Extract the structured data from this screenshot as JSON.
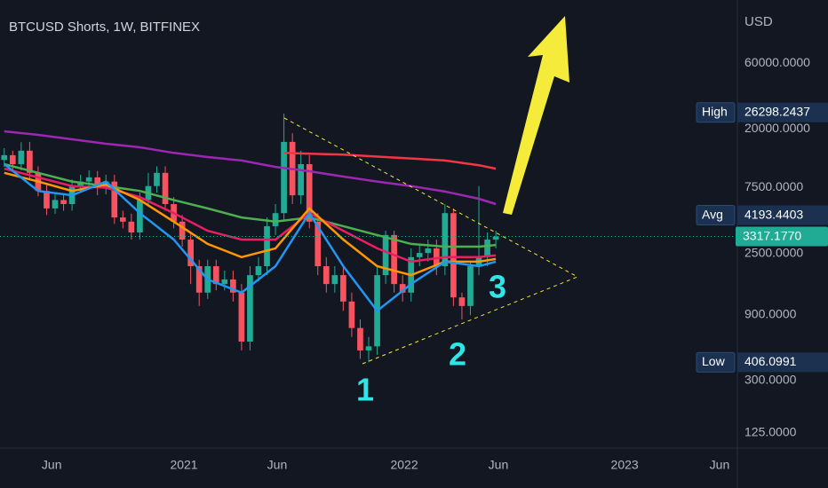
{
  "chart_data": {
    "type": "candlestick",
    "title": "BTCUSD Shorts, 1W, BITFINEX",
    "y_axis_label": "USD",
    "log_scale": true,
    "grid": false,
    "ylim": [
      97,
      172000
    ],
    "yticks": [
      {
        "value": 60000,
        "label": "60000.0000"
      },
      {
        "value": 20000,
        "label": "20000.0000"
      },
      {
        "value": 7500,
        "label": "7500.0000"
      },
      {
        "value": 2500,
        "label": "2500.0000"
      },
      {
        "value": 900,
        "label": "900.0000"
      },
      {
        "value": 300,
        "label": "300.0000"
      },
      {
        "value": 125,
        "label": "125.0000"
      }
    ],
    "xlim": [
      -0.5,
      86.5
    ],
    "xticks": [
      {
        "value": 5.6,
        "label": "Jun"
      },
      {
        "value": 21.2,
        "label": "2021"
      },
      {
        "value": 32.2,
        "label": "Jun"
      },
      {
        "value": 47.2,
        "label": "2022"
      },
      {
        "value": 58.3,
        "label": "Jun"
      },
      {
        "value": 73.2,
        "label": "2023"
      },
      {
        "value": 84.4,
        "label": "Jun"
      }
    ],
    "up_color": "#22ab94",
    "down_color": "#f7525f",
    "x": [
      0,
      1,
      2,
      3,
      4,
      5,
      6,
      7,
      8,
      9,
      10,
      11,
      12,
      13,
      14,
      15,
      16,
      17,
      18,
      19,
      20,
      21,
      22,
      23,
      24,
      25,
      26,
      27,
      28,
      29,
      30,
      31,
      32,
      33,
      34,
      35,
      36,
      37,
      38,
      39,
      40,
      41,
      42,
      43,
      44,
      45,
      46,
      47,
      48,
      49,
      50,
      51,
      52,
      53,
      54,
      55,
      56,
      57,
      58
    ],
    "open": [
      11900,
      12900,
      11100,
      13900,
      9600,
      7100,
      5300,
      6100,
      5700,
      7700,
      8300,
      8900,
      7500,
      8300,
      4560,
      4250,
      3550,
      6100,
      7700,
      9600,
      5700,
      4250,
      3150,
      2020,
      1300,
      2020,
      1500,
      1620,
      1300,
      574,
      1740,
      2020,
      3940,
      4900,
      16100,
      6600,
      11100,
      4250,
      2020,
      1500,
      1740,
      1120,
      720,
      495,
      530,
      1740,
      3400,
      1500,
      1300,
      2350,
      2520,
      2720,
      2020,
      4900,
      1200,
      1040,
      2020,
      2350,
      3150
    ],
    "high": [
      14500,
      13900,
      16000,
      16100,
      10700,
      7900,
      6700,
      6700,
      8600,
      9300,
      10000,
      9900,
      9300,
      9300,
      5100,
      4850,
      6900,
      9600,
      10700,
      10700,
      6400,
      4750,
      3550,
      2250,
      2250,
      2250,
      1880,
      1880,
      1500,
      2020,
      2350,
      4560,
      5700,
      25800,
      18600,
      13900,
      12900,
      4900,
      2350,
      2020,
      2020,
      1300,
      830,
      620,
      2020,
      3650,
      3650,
      1740,
      2720,
      2930,
      3150,
      3150,
      5700,
      5300,
      1300,
      2180,
      7700,
      3550,
      3650
    ],
    "low": [
      10600,
      10000,
      10000,
      8600,
      6500,
      4750,
      4850,
      5100,
      5100,
      6900,
      7500,
      6600,
      6700,
      4100,
      3800,
      3150,
      3150,
      5500,
      6900,
      5100,
      3800,
      2800,
      1500,
      1040,
      1170,
      1350,
      1350,
      1120,
      495,
      495,
      1560,
      1740,
      3400,
      4300,
      5700,
      5700,
      3800,
      1740,
      1300,
      1300,
      960,
      620,
      430,
      406,
      460,
      1500,
      1300,
      1120,
      1120,
      2020,
      2180,
      1740,
      1740,
      1040,
      830,
      895,
      1740,
      2020,
      2720
    ],
    "close": [
      12900,
      11100,
      13900,
      9600,
      7100,
      5300,
      6100,
      5700,
      7700,
      8300,
      8900,
      7500,
      8300,
      4560,
      4250,
      3550,
      6100,
      7700,
      9600,
      5700,
      4250,
      3150,
      2020,
      1300,
      2020,
      1500,
      1620,
      1300,
      574,
      1740,
      2020,
      3940,
      4900,
      16100,
      6600,
      11100,
      4250,
      2020,
      1500,
      1740,
      1120,
      720,
      495,
      530,
      1740,
      3400,
      1500,
      1300,
      2350,
      2520,
      2720,
      2020,
      4900,
      1200,
      1040,
      2020,
      2350,
      3150,
      3317.177
    ],
    "series": [
      {
        "color": "#9c27b0",
        "x": [
          0,
          4,
          8,
          12,
          16,
          20,
          24,
          28,
          32,
          36,
          40,
          44,
          48,
          52,
          56,
          58
        ],
        "values": [
          19200,
          18100,
          16800,
          15600,
          14700,
          13400,
          12500,
          11800,
          10600,
          9860,
          9020,
          8300,
          7700,
          7020,
          6230,
          5700
        ]
      },
      {
        "color": "#f23645",
        "x": [
          33,
          36,
          40,
          44,
          48,
          52,
          56,
          58
        ],
        "values": [
          13400,
          13200,
          13000,
          12600,
          12200,
          11800,
          10900,
          10300
        ]
      },
      {
        "color": "#4caf50",
        "x": [
          0,
          4,
          8,
          12,
          16,
          20,
          24,
          28,
          32,
          36,
          40,
          44,
          48,
          52,
          56,
          58
        ],
        "values": [
          11100,
          9600,
          8300,
          7700,
          7100,
          6100,
          5300,
          4560,
          4250,
          4560,
          3940,
          3400,
          2930,
          2800,
          2800,
          2880
        ]
      },
      {
        "color": "#e91e63",
        "x": [
          0,
          4,
          8,
          12,
          16,
          20,
          24,
          28,
          32,
          36,
          40,
          44,
          48,
          52,
          56,
          58
        ],
        "values": [
          10300,
          8900,
          7700,
          7500,
          6400,
          4900,
          3650,
          3150,
          3150,
          4900,
          3650,
          2720,
          2180,
          2350,
          2350,
          2420
        ]
      },
      {
        "color": "#ff9800",
        "x": [
          0,
          4,
          8,
          12,
          16,
          20,
          24,
          28,
          32,
          36,
          40,
          44,
          48,
          52,
          56,
          58
        ],
        "values": [
          9600,
          8300,
          7100,
          7900,
          6100,
          4250,
          2930,
          2350,
          2720,
          5300,
          3150,
          2020,
          1740,
          2180,
          2180,
          2280
        ]
      },
      {
        "color": "#2196f3",
        "x": [
          0,
          4,
          8,
          12,
          16,
          20,
          24,
          28,
          32,
          36,
          40,
          44,
          48,
          52,
          56,
          58
        ],
        "values": [
          11100,
          7100,
          6600,
          8300,
          4900,
          3150,
          1620,
          1300,
          2020,
          4900,
          2020,
          960,
          1500,
          2180,
          2020,
          2180
        ]
      }
    ],
    "stats": [
      {
        "label": "High",
        "value": 26298.2437
      },
      {
        "label": "Avg",
        "value": 4193.4403
      },
      {
        "label": "Low",
        "value": 406.0991
      }
    ],
    "last_price": {
      "value": 3317.177,
      "label": "3317.1770",
      "color": "#22ab94"
    },
    "annotations": [
      "1",
      "2",
      "3"
    ]
  }
}
